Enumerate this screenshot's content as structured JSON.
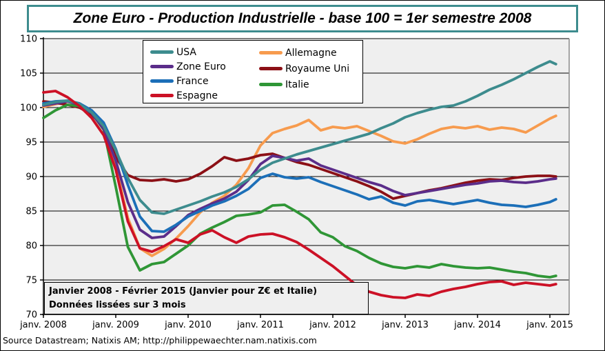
{
  "figure": {
    "title": "Zone Euro - Production Industrielle - base 100 = 1er semestre 2008",
    "title_border_color": "#3D8C8E",
    "annotation_line1": "Janvier 2008 - Février 2015 (Janvier pour Z€ et Italie)",
    "annotation_line2": "Données lissées  sur 3 mois",
    "source": "Source Datastream; Natixis AM; http://philippewaechter.nam.natixis.com"
  },
  "chart_data": {
    "type": "line",
    "title": "Zone Euro - Production Industrielle - base 100 = 1er semestre 2008",
    "xlabel": "",
    "ylabel": "",
    "ylim": [
      70,
      110
    ],
    "y_ticks": [
      110,
      105,
      100,
      95,
      90,
      85,
      80,
      75,
      70
    ],
    "grid": "horizontal",
    "plot_bg": "#EFEFEF",
    "legend_position": "top-left-inside",
    "x_tick_labels": [
      "janv. 2008",
      "janv. 2009",
      "janv. 2010",
      "janv. 2011",
      "janv. 2012",
      "janv. 2013",
      "janv. 2014",
      "janv. 2015"
    ],
    "x_tick_months": [
      0,
      12,
      24,
      36,
      48,
      60,
      72,
      84
    ],
    "x_months_from_jan2008": [
      0,
      2,
      4,
      6,
      8,
      10,
      12,
      14,
      16,
      18,
      20,
      22,
      24,
      26,
      28,
      30,
      32,
      34,
      36,
      38,
      40,
      42,
      44,
      46,
      48,
      50,
      52,
      54,
      56,
      58,
      60,
      62,
      64,
      66,
      68,
      70,
      72,
      74,
      76,
      78,
      80,
      82,
      84,
      85
    ],
    "series": [
      {
        "name": "USA",
        "color": "#3D8C8E",
        "values": [
          100.4,
          100.8,
          101.0,
          100.5,
          99.3,
          97.3,
          93.8,
          89.8,
          86.6,
          84.8,
          84.6,
          85.2,
          85.8,
          86.4,
          87.1,
          87.7,
          88.5,
          89.6,
          91.0,
          92.0,
          92.6,
          93.2,
          93.7,
          94.2,
          94.7,
          95.2,
          95.7,
          96.2,
          97.0,
          97.7,
          98.6,
          99.2,
          99.7,
          100.1,
          100.3,
          100.9,
          101.7,
          102.6,
          103.3,
          104.1,
          105.0,
          105.9,
          106.7,
          106.3
        ]
      },
      {
        "name": "Zone Euro",
        "color": "#5B2D8A",
        "values": [
          100.3,
          100.6,
          100.9,
          100.4,
          99.2,
          96.9,
          92.3,
          86.3,
          82.3,
          81.1,
          81.3,
          82.8,
          84.4,
          85.3,
          86.1,
          86.8,
          87.8,
          89.5,
          91.8,
          93.0,
          92.7,
          92.3,
          92.6,
          91.6,
          91.0,
          90.4,
          89.8,
          89.2,
          88.7,
          87.9,
          87.3,
          87.6,
          87.9,
          88.2,
          88.5,
          88.8,
          89.0,
          89.3,
          89.4,
          89.2,
          89.1,
          89.3,
          89.6,
          89.7
        ]
      },
      {
        "name": "France",
        "color": "#1C6FB8",
        "values": [
          100.6,
          100.9,
          101.0,
          100.6,
          99.6,
          97.8,
          94.0,
          88.8,
          84.2,
          82.1,
          82.0,
          83.0,
          84.2,
          85.0,
          85.8,
          86.4,
          87.2,
          88.2,
          89.8,
          90.4,
          89.9,
          89.7,
          89.9,
          89.2,
          88.6,
          88.0,
          87.4,
          86.7,
          87.1,
          86.2,
          85.8,
          86.4,
          86.6,
          86.3,
          86.0,
          86.3,
          86.6,
          86.2,
          85.9,
          85.8,
          85.6,
          85.9,
          86.3,
          86.7
        ]
      },
      {
        "name": "Espagne",
        "color": "#CC1126",
        "values": [
          102.2,
          102.4,
          101.5,
          100.2,
          98.5,
          96.0,
          91.0,
          83.5,
          79.6,
          79.1,
          79.9,
          80.9,
          80.4,
          81.6,
          82.2,
          81.2,
          80.4,
          81.3,
          81.6,
          81.7,
          81.2,
          80.5,
          79.4,
          78.2,
          77.0,
          75.6,
          74.2,
          73.3,
          72.8,
          72.5,
          72.4,
          72.9,
          72.7,
          73.3,
          73.7,
          74.0,
          74.4,
          74.7,
          74.8,
          74.3,
          74.6,
          74.4,
          74.2,
          74.4
        ]
      },
      {
        "name": "Allemagne",
        "color": "#F79B4E",
        "values": [
          100.1,
          100.5,
          100.9,
          100.4,
          99.2,
          96.8,
          91.5,
          84.0,
          79.6,
          78.5,
          79.5,
          81.0,
          82.8,
          84.8,
          86.2,
          87.2,
          88.8,
          91.2,
          94.5,
          96.3,
          96.9,
          97.4,
          98.2,
          96.7,
          97.2,
          97.0,
          97.3,
          96.6,
          95.9,
          95.1,
          94.8,
          95.4,
          96.2,
          96.9,
          97.2,
          97.0,
          97.3,
          96.8,
          97.1,
          96.9,
          96.4,
          97.4,
          98.4,
          98.8
        ]
      },
      {
        "name": "Royaume Uni",
        "color": "#8C1016",
        "values": [
          100.9,
          100.7,
          100.4,
          100.0,
          99.0,
          97.2,
          92.8,
          90.2,
          89.5,
          89.4,
          89.6,
          89.3,
          89.6,
          90.4,
          91.5,
          92.8,
          92.3,
          92.6,
          93.1,
          93.3,
          92.7,
          92.1,
          91.7,
          91.1,
          90.5,
          89.9,
          89.3,
          88.6,
          87.8,
          86.8,
          87.2,
          87.6,
          88.0,
          88.3,
          88.7,
          89.1,
          89.4,
          89.6,
          89.5,
          89.8,
          90.0,
          90.1,
          90.1,
          90.0
        ]
      },
      {
        "name": "Italie",
        "color": "#2F9636",
        "values": [
          98.5,
          99.6,
          100.4,
          100.2,
          99.2,
          96.8,
          88.5,
          79.8,
          76.4,
          77.3,
          77.6,
          78.8,
          80.0,
          81.7,
          82.6,
          83.4,
          84.3,
          84.5,
          84.8,
          85.8,
          85.9,
          84.9,
          83.8,
          81.9,
          81.2,
          79.9,
          79.2,
          78.2,
          77.4,
          76.9,
          76.7,
          77.0,
          76.8,
          77.3,
          77.0,
          76.8,
          76.7,
          76.8,
          76.5,
          76.2,
          76.0,
          75.6,
          75.4,
          75.6
        ]
      }
    ]
  }
}
